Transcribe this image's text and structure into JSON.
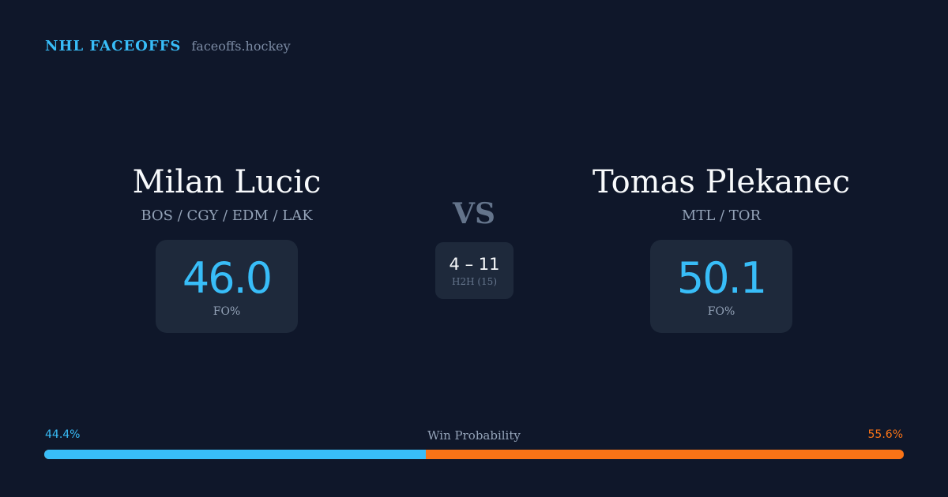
{
  "brand": {
    "name": "NHL FACEOFFS",
    "url": "faceoffs.hockey"
  },
  "player1": {
    "name": "Milan Lucic",
    "teams": "BOS / CGY / EDM / LAK",
    "fo_pct": "46.0",
    "fo_label": "FO%"
  },
  "player2": {
    "name": "Tomas Plekanec",
    "teams": "MTL / TOR",
    "fo_pct": "50.1",
    "fo_label": "FO%"
  },
  "vs": "VS",
  "h2h": {
    "score": "4 – 11",
    "label": "H2H (15)"
  },
  "win_probability": {
    "title": "Win Probability",
    "left": "44.4%",
    "right": "55.6%",
    "left_value": 44.4,
    "right_value": 55.6,
    "left_color": "#38bdf8",
    "right_color": "#f97316"
  }
}
